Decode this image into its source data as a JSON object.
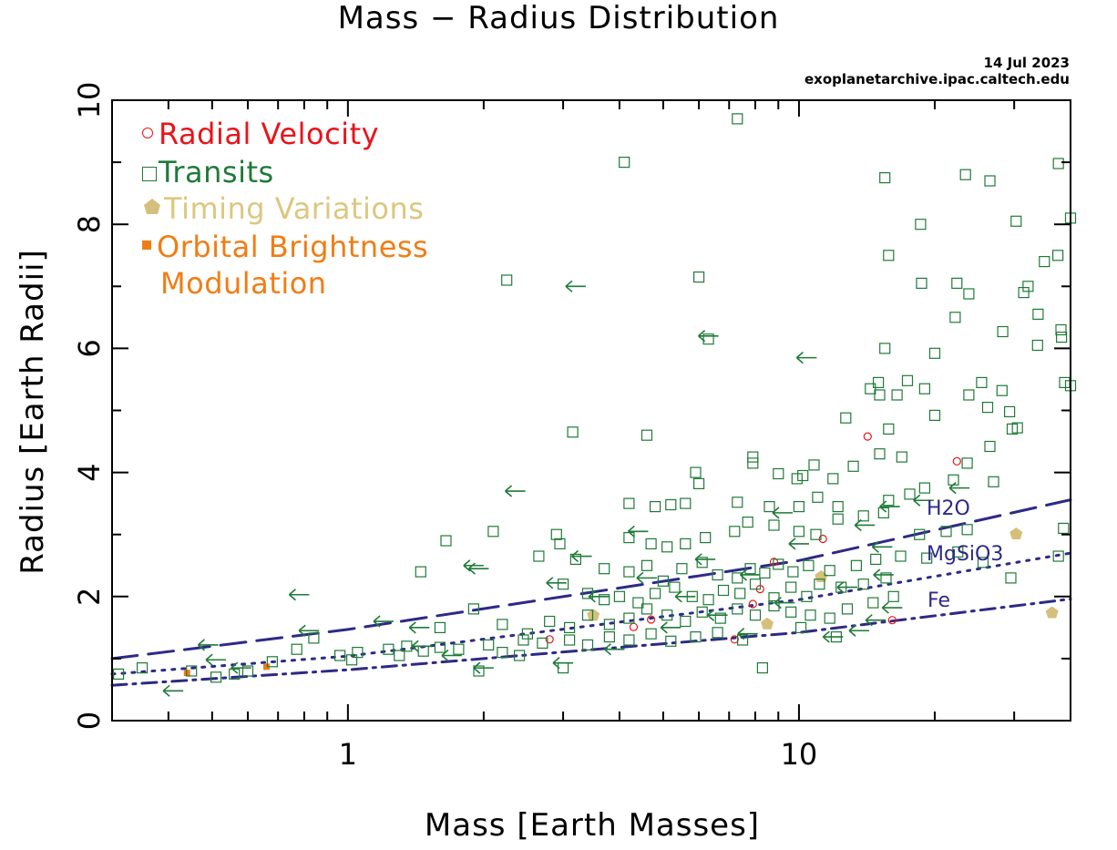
{
  "title": "Mass − Radius Distribution",
  "credit": {
    "date": "14 Jul 2023",
    "site": "exoplanetarchive.ipac.caltech.edu"
  },
  "colors": {
    "radial_velocity": "#e8141a",
    "transits": "#1f7a38",
    "timing_variations": "#d4c07c",
    "orbital_brightness": "#f07d14",
    "composition": "#2d2a86"
  },
  "legend": {
    "radial_velocity": "Radial Velocity",
    "transits": "Transits",
    "timing_variations": "Timing Variations",
    "orbital_brightness_1": "Orbital Brightness",
    "orbital_brightness_2": "Modulation"
  },
  "composition_labels": {
    "h2o": "H2O",
    "mgsio3": "MgSiO3",
    "fe": "Fe"
  },
  "chart_data": {
    "type": "scatter",
    "title": "Mass − Radius Distribution",
    "xlabel": "Mass [Earth Masses]",
    "ylabel": "Radius [Earth Radii]",
    "xscale": "log",
    "xlim": [
      0.3,
      40
    ],
    "ylim": [
      0,
      10
    ],
    "xticks": [
      {
        "value": 1,
        "label": "1"
      },
      {
        "value": 10,
        "label": "10"
      }
    ],
    "yticks": [
      {
        "value": 0,
        "label": "0"
      },
      {
        "value": 2,
        "label": "2"
      },
      {
        "value": 4,
        "label": "4"
      },
      {
        "value": 6,
        "label": "6"
      },
      {
        "value": 8,
        "label": "8"
      },
      {
        "value": 10,
        "label": "10"
      }
    ],
    "series": [
      {
        "name": "Radial Velocity",
        "marker": "circle",
        "points": [
          [
            2.8,
            1.31
          ],
          [
            4.3,
            1.51
          ],
          [
            4.7,
            1.63
          ],
          [
            7.2,
            1.31
          ],
          [
            7.9,
            1.88
          ],
          [
            8.2,
            2.12
          ],
          [
            8.8,
            2.56
          ],
          [
            11.3,
            2.93
          ],
          [
            14.2,
            4.58
          ],
          [
            16.1,
            1.62
          ],
          [
            22.4,
            4.18
          ]
        ]
      },
      {
        "name": "Timing Variations",
        "marker": "pentagon",
        "points": [
          [
            3.5,
            1.7
          ],
          [
            8.5,
            1.56
          ],
          [
            11.2,
            2.32
          ],
          [
            30.3,
            3.01
          ],
          [
            36.4,
            1.74
          ]
        ]
      },
      {
        "name": "Orbital Brightness Modulation",
        "marker": "filled-square",
        "points": [
          [
            0.44,
            0.77
          ],
          [
            0.66,
            0.87
          ]
        ]
      },
      {
        "name": "Transits (upper limits)",
        "marker": "left-arrow",
        "points": [
          [
            3.2,
            7.0
          ],
          [
            6.3,
            6.2
          ],
          [
            10.4,
            5.85
          ],
          [
            0.78,
            2.03
          ],
          [
            2.35,
            3.7
          ],
          [
            1.9,
            2.5
          ],
          [
            1.2,
            1.6
          ],
          [
            3.3,
            2.65
          ],
          [
            2.9,
            2.22
          ],
          [
            4.4,
            3.05
          ],
          [
            12.8,
            2.15
          ],
          [
            15.4,
            2.35
          ],
          [
            5.2,
            1.5
          ],
          [
            6.6,
            1.7
          ],
          [
            9.3,
            1.9
          ],
          [
            13.6,
            1.45
          ],
          [
            14.8,
            1.62
          ],
          [
            0.49,
            1.22
          ],
          [
            0.58,
            0.85
          ],
          [
            0.41,
            0.48
          ],
          [
            0.51,
            0.98
          ],
          [
            0.82,
            1.45
          ],
          [
            1.46,
            1.2
          ],
          [
            2.0,
            0.85
          ],
          [
            3.9,
            1.15
          ],
          [
            7.7,
            1.4
          ],
          [
            11.9,
            1.35
          ],
          [
            3.0,
            0.93
          ],
          [
            9.2,
            3.35
          ],
          [
            15.9,
            3.45
          ],
          [
            15.3,
            2.8
          ],
          [
            4.6,
            2.3
          ],
          [
            5.6,
            2.0
          ],
          [
            16.1,
            1.82
          ],
          [
            7.8,
            2.35
          ],
          [
            1.7,
            1.05
          ],
          [
            1.44,
            1.5
          ],
          [
            1.95,
            2.45
          ],
          [
            3.6,
            2.0
          ],
          [
            6.2,
            2.6
          ],
          [
            10.0,
            2.85
          ],
          [
            14.0,
            3.15
          ],
          [
            18.9,
            3.55
          ],
          [
            22.7,
            3.75
          ]
        ]
      },
      {
        "name": "Transits",
        "marker": "open-square",
        "points": [
          [
            7.3,
            9.7
          ],
          [
            4.1,
            9.0
          ],
          [
            15.5,
            8.75
          ],
          [
            23.4,
            8.8
          ],
          [
            26.5,
            8.7
          ],
          [
            37.6,
            8.98
          ],
          [
            40.0,
            8.1
          ],
          [
            30.3,
            8.05
          ],
          [
            18.6,
            8.0
          ],
          [
            2.25,
            7.1
          ],
          [
            6.0,
            7.15
          ],
          [
            15.8,
            7.5
          ],
          [
            32.2,
            7.0
          ],
          [
            35.0,
            7.4
          ],
          [
            37.5,
            7.5
          ],
          [
            18.7,
            7.05
          ],
          [
            22.4,
            7.05
          ],
          [
            23.8,
            6.88
          ],
          [
            31.5,
            6.9
          ],
          [
            33.9,
            6.55
          ],
          [
            22.2,
            6.5
          ],
          [
            28.3,
            6.27
          ],
          [
            38.1,
            6.3
          ],
          [
            38.2,
            6.18
          ],
          [
            6.3,
            6.15
          ],
          [
            15.5,
            6.0
          ],
          [
            33.8,
            6.05
          ],
          [
            20.0,
            5.92
          ],
          [
            3.15,
            4.65
          ],
          [
            4.6,
            4.6
          ],
          [
            12.7,
            4.88
          ],
          [
            14.4,
            5.35
          ],
          [
            15.0,
            5.45
          ],
          [
            15.1,
            5.25
          ],
          [
            17.4,
            5.48
          ],
          [
            16.5,
            5.25
          ],
          [
            19.0,
            5.35
          ],
          [
            20.0,
            4.92
          ],
          [
            23.8,
            5.25
          ],
          [
            25.4,
            5.45
          ],
          [
            26.2,
            5.05
          ],
          [
            28.2,
            5.32
          ],
          [
            29.3,
            4.98
          ],
          [
            29.7,
            4.7
          ],
          [
            30.5,
            4.72
          ],
          [
            38.8,
            5.45
          ],
          [
            40.0,
            5.4
          ],
          [
            26.5,
            4.42
          ],
          [
            15.1,
            4.3
          ],
          [
            15.8,
            4.7
          ],
          [
            16.9,
            4.25
          ],
          [
            23.6,
            4.15
          ],
          [
            7.9,
            4.25
          ],
          [
            7.9,
            4.15
          ],
          [
            9.0,
            3.98
          ],
          [
            9.9,
            3.9
          ],
          [
            10.2,
            3.95
          ],
          [
            10.8,
            4.12
          ],
          [
            11.9,
            3.9
          ],
          [
            13.2,
            4.1
          ],
          [
            5.9,
            4.0
          ],
          [
            6.0,
            3.82
          ],
          [
            4.2,
            3.5
          ],
          [
            4.8,
            3.45
          ],
          [
            5.2,
            3.48
          ],
          [
            5.6,
            3.5
          ],
          [
            7.3,
            3.52
          ],
          [
            8.6,
            3.45
          ],
          [
            10.0,
            3.45
          ],
          [
            11.0,
            3.6
          ],
          [
            12.2,
            3.45
          ],
          [
            15.8,
            3.55
          ],
          [
            17.6,
            3.65
          ],
          [
            19.0,
            3.75
          ],
          [
            22.0,
            3.88
          ],
          [
            27.0,
            3.85
          ],
          [
            2.9,
            3.0
          ],
          [
            2.95,
            2.85
          ],
          [
            4.2,
            2.95
          ],
          [
            4.7,
            2.85
          ],
          [
            5.1,
            2.8
          ],
          [
            5.6,
            2.85
          ],
          [
            6.2,
            2.95
          ],
          [
            7.2,
            3.05
          ],
          [
            7.7,
            3.2
          ],
          [
            8.8,
            3.15
          ],
          [
            10.0,
            3.05
          ],
          [
            10.9,
            3.0
          ],
          [
            12.2,
            3.25
          ],
          [
            13.9,
            3.3
          ],
          [
            15.4,
            3.35
          ],
          [
            18.5,
            3.0
          ],
          [
            21.2,
            3.05
          ],
          [
            23.6,
            3.08
          ],
          [
            38.6,
            3.1
          ],
          [
            37.6,
            2.65
          ],
          [
            22.5,
            2.72
          ],
          [
            25.6,
            2.55
          ],
          [
            29.5,
            2.3
          ],
          [
            1.45,
            2.4
          ],
          [
            1.65,
            2.9
          ],
          [
            2.1,
            3.05
          ],
          [
            2.65,
            2.65
          ],
          [
            3.2,
            2.6
          ],
          [
            3.7,
            2.45
          ],
          [
            4.2,
            2.4
          ],
          [
            4.6,
            2.5
          ],
          [
            5.0,
            2.25
          ],
          [
            5.5,
            2.45
          ],
          [
            6.1,
            2.55
          ],
          [
            6.6,
            2.35
          ],
          [
            7.3,
            2.3
          ],
          [
            7.8,
            2.45
          ],
          [
            8.4,
            2.38
          ],
          [
            9.0,
            2.52
          ],
          [
            9.7,
            2.4
          ],
          [
            10.5,
            2.5
          ],
          [
            11.7,
            2.42
          ],
          [
            13.4,
            2.5
          ],
          [
            14.8,
            2.6
          ],
          [
            16.8,
            2.65
          ],
          [
            19.2,
            2.62
          ],
          [
            3.0,
            2.2
          ],
          [
            3.4,
            2.05
          ],
          [
            3.7,
            1.95
          ],
          [
            4.0,
            2.0
          ],
          [
            4.4,
            1.9
          ],
          [
            4.8,
            2.05
          ],
          [
            5.3,
            2.15
          ],
          [
            5.8,
            2.0
          ],
          [
            6.3,
            1.95
          ],
          [
            6.8,
            2.1
          ],
          [
            7.4,
            2.05
          ],
          [
            8.0,
            2.2
          ],
          [
            8.8,
            1.98
          ],
          [
            9.6,
            2.15
          ],
          [
            10.4,
            2.0
          ],
          [
            11.1,
            2.2
          ],
          [
            12.4,
            2.15
          ],
          [
            13.9,
            2.2
          ],
          [
            15.6,
            2.3
          ],
          [
            1.6,
            1.5
          ],
          [
            1.9,
            1.8
          ],
          [
            2.2,
            1.55
          ],
          [
            2.5,
            1.4
          ],
          [
            2.8,
            1.6
          ],
          [
            3.1,
            1.5
          ],
          [
            3.4,
            1.7
          ],
          [
            3.8,
            1.55
          ],
          [
            4.2,
            1.65
          ],
          [
            4.6,
            1.8
          ],
          [
            5.1,
            1.7
          ],
          [
            5.6,
            1.6
          ],
          [
            6.1,
            1.75
          ],
          [
            6.7,
            1.65
          ],
          [
            7.3,
            1.8
          ],
          [
            8.0,
            1.7
          ],
          [
            8.8,
            1.85
          ],
          [
            9.6,
            1.75
          ],
          [
            10.6,
            1.7
          ],
          [
            11.7,
            1.65
          ],
          [
            12.8,
            1.8
          ],
          [
            14.6,
            1.9
          ],
          [
            16.2,
            2.0
          ],
          [
            0.31,
            0.75
          ],
          [
            0.35,
            0.85
          ],
          [
            0.45,
            0.8
          ],
          [
            0.51,
            0.7
          ],
          [
            0.56,
            0.75
          ],
          [
            0.6,
            0.8
          ],
          [
            0.68,
            0.95
          ],
          [
            0.77,
            1.15
          ],
          [
            0.84,
            1.33
          ],
          [
            0.96,
            1.05
          ],
          [
            1.05,
            1.1
          ],
          [
            1.23,
            1.15
          ],
          [
            1.35,
            1.2
          ],
          [
            1.47,
            1.12
          ],
          [
            1.6,
            1.18
          ],
          [
            1.76,
            1.15
          ],
          [
            2.05,
            1.22
          ],
          [
            2.2,
            1.1
          ],
          [
            2.45,
            1.3
          ],
          [
            2.7,
            1.25
          ],
          [
            3.1,
            1.3
          ],
          [
            3.4,
            1.22
          ],
          [
            3.8,
            1.35
          ],
          [
            4.2,
            1.3
          ],
          [
            4.7,
            1.4
          ],
          [
            5.2,
            1.28
          ],
          [
            5.9,
            1.35
          ],
          [
            6.6,
            1.42
          ],
          [
            7.5,
            1.3
          ],
          [
            8.3,
            0.85
          ],
          [
            10.1,
            1.5
          ],
          [
            12.1,
            1.35
          ],
          [
            3.0,
            0.85
          ],
          [
            2.4,
            1.05
          ],
          [
            1.95,
            0.8
          ],
          [
            1.3,
            1.05
          ],
          [
            1.02,
            0.98
          ]
        ]
      }
    ],
    "composition_curves": [
      {
        "name": "H2O",
        "style": "long-dash",
        "points": [
          [
            0.3,
            1.0
          ],
          [
            1.0,
            1.47
          ],
          [
            10.0,
            2.58
          ],
          [
            40.0,
            3.56
          ]
        ]
      },
      {
        "name": "MgSiO3",
        "style": "dotted",
        "points": [
          [
            0.3,
            0.75
          ],
          [
            1.0,
            1.04
          ],
          [
            10.0,
            1.95
          ],
          [
            40.0,
            2.7
          ]
        ]
      },
      {
        "name": "Fe",
        "style": "dash-dot",
        "points": [
          [
            0.3,
            0.57
          ],
          [
            1.0,
            0.82
          ],
          [
            10.0,
            1.42
          ],
          [
            40.0,
            1.96
          ]
        ]
      }
    ]
  }
}
